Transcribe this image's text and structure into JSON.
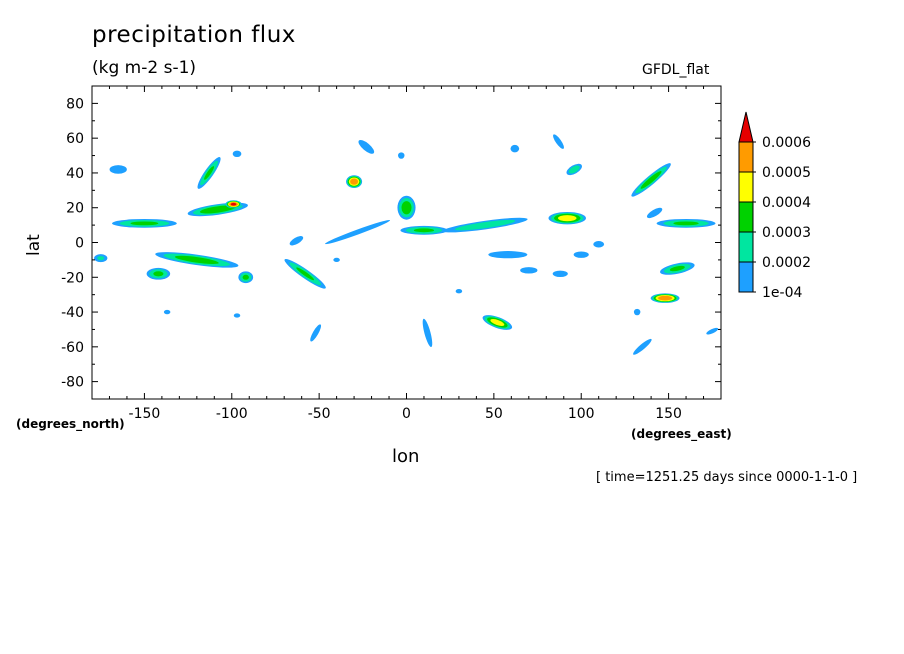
{
  "chart_data": {
    "type": "heatmap",
    "title": "precipitation flux",
    "units": "(kg m-2 s-1)",
    "dataset": "GFDL_flat",
    "xlabel": "lon",
    "xunit": "(degrees_east)",
    "ylabel": "lat",
    "yunit": "(degrees_north)",
    "time_note": "[ time=1251.25 days since 0000-1-1-0 ]",
    "xlim": [
      -180,
      180
    ],
    "ylim": [
      -90,
      90
    ],
    "x_ticks": [
      "-150",
      "-100",
      "-50",
      "0",
      "50",
      "100",
      "150"
    ],
    "x_tick_values": [
      -150,
      -100,
      -50,
      0,
      50,
      100,
      150
    ],
    "y_ticks": [
      "80",
      "60",
      "40",
      "20",
      "0",
      "-20",
      "-40",
      "-60",
      "-80"
    ],
    "y_tick_values": [
      80,
      60,
      40,
      20,
      0,
      -20,
      -40,
      -60,
      -80
    ],
    "colorbar": {
      "labels": [
        "0.0006",
        "0.0005",
        "0.0004",
        "0.0003",
        "0.0002",
        "1e-04"
      ],
      "levels": [
        0.0001,
        0.0002,
        0.0003,
        0.0004,
        0.0005,
        0.0006
      ],
      "colors": [
        "#1ea0ff",
        "#00e6a0",
        "#00d200",
        "#ffff00",
        "#ff9b00",
        "#e60000"
      ],
      "extend": "max"
    },
    "grid": false,
    "features": [
      {
        "lon": -165,
        "lat": 42,
        "rx": 8,
        "ry": 4,
        "angle": 0,
        "peak": 0.00015
      },
      {
        "lon": -175,
        "lat": -9,
        "rx": 5,
        "ry": 3,
        "angle": 0,
        "peak": 0.00022
      },
      {
        "lon": -150,
        "lat": 11,
        "rx": 22,
        "ry": 3,
        "angle": 0,
        "peak": 0.00032
      },
      {
        "lon": -142,
        "lat": -18,
        "rx": 8,
        "ry": 4,
        "angle": 0,
        "peak": 0.00032
      },
      {
        "lon": -113,
        "lat": 40,
        "rx": 13,
        "ry": 3,
        "angle": 55,
        "peak": 0.00032
      },
      {
        "lon": -97,
        "lat": 51,
        "rx": 4,
        "ry": 3,
        "angle": 0,
        "peak": 0.00015
      },
      {
        "lon": -108,
        "lat": 19,
        "rx": 20,
        "ry": 3.5,
        "angle": 8,
        "peak": 0.00038
      },
      {
        "lon": -99,
        "lat": 22,
        "rx": 5,
        "ry": 2.5,
        "angle": 0,
        "peak": 0.00062
      },
      {
        "lon": -120,
        "lat": -10,
        "rx": 28,
        "ry": 3.5,
        "angle": -8,
        "peak": 0.00035
      },
      {
        "lon": -92,
        "lat": -20,
        "rx": 5,
        "ry": 4,
        "angle": 0,
        "peak": 0.00032
      },
      {
        "lon": -137,
        "lat": -40,
        "rx": 3,
        "ry": 2,
        "angle": 0,
        "peak": 0.00015
      },
      {
        "lon": -97,
        "lat": -42,
        "rx": 3,
        "ry": 2,
        "angle": 0,
        "peak": 0.00015
      },
      {
        "lon": -58,
        "lat": -18,
        "rx": 17,
        "ry": 3,
        "angle": -35,
        "peak": 0.00032
      },
      {
        "lon": -52,
        "lat": -52,
        "rx": 9,
        "ry": 2.5,
        "angle": 60,
        "peak": 0.00015
      },
      {
        "lon": -63,
        "lat": 1,
        "rx": 7,
        "ry": 3,
        "angle": 30,
        "peak": 0.00015
      },
      {
        "lon": -30,
        "lat": 35,
        "rx": 5,
        "ry": 4,
        "angle": 0,
        "peak": 0.00058
      },
      {
        "lon": -23,
        "lat": 55,
        "rx": 9,
        "ry": 3.5,
        "angle": -40,
        "peak": 0.00015
      },
      {
        "lon": -3,
        "lat": 50,
        "rx": 3,
        "ry": 3,
        "angle": 0,
        "peak": 0.00015
      },
      {
        "lon": -28,
        "lat": 6,
        "rx": 32,
        "ry": 2.3,
        "angle": 20,
        "peak": 0.00015
      },
      {
        "lon": 0,
        "lat": 20,
        "rx": 6,
        "ry": 8,
        "angle": 0,
        "peak": 0.00036
      },
      {
        "lon": 10,
        "lat": 7,
        "rx": 16,
        "ry": 3,
        "angle": 0,
        "peak": 0.00032
      },
      {
        "lon": 45,
        "lat": 10,
        "rx": 30,
        "ry": 3,
        "angle": 8,
        "peak": 0.00028
      },
      {
        "lon": 58,
        "lat": -7,
        "rx": 16,
        "ry": 3,
        "angle": 0,
        "peak": 0.00018
      },
      {
        "lon": 70,
        "lat": -16,
        "rx": 8,
        "ry": 3,
        "angle": 0,
        "peak": 0.00015
      },
      {
        "lon": 88,
        "lat": -18,
        "rx": 7,
        "ry": 3,
        "angle": 0,
        "peak": 0.00015
      },
      {
        "lon": 12,
        "lat": -52,
        "rx": 12,
        "ry": 2.5,
        "angle": -75,
        "peak": 0.00018
      },
      {
        "lon": 52,
        "lat": -46,
        "rx": 10,
        "ry": 3.5,
        "angle": -20,
        "peak": 0.00045
      },
      {
        "lon": 62,
        "lat": 54,
        "rx": 4,
        "ry": 3.5,
        "angle": 0,
        "peak": 0.00015
      },
      {
        "lon": 87,
        "lat": 58,
        "rx": 8,
        "ry": 2.5,
        "angle": -55,
        "peak": 0.00015
      },
      {
        "lon": 96,
        "lat": 42,
        "rx": 6,
        "ry": 3,
        "angle": 30,
        "peak": 0.00028
      },
      {
        "lon": 92,
        "lat": 14,
        "rx": 12,
        "ry": 4,
        "angle": 0,
        "peak": 0.00046
      },
      {
        "lon": 100,
        "lat": -7,
        "rx": 7,
        "ry": 3,
        "angle": 0,
        "peak": 0.00015
      },
      {
        "lon": 110,
        "lat": -1,
        "rx": 5,
        "ry": 3,
        "angle": 0,
        "peak": 0.00015
      },
      {
        "lon": 140,
        "lat": 36,
        "rx": 17,
        "ry": 3,
        "angle": 40,
        "peak": 0.00035
      },
      {
        "lon": 160,
        "lat": 11,
        "rx": 20,
        "ry": 3,
        "angle": 0,
        "peak": 0.00032
      },
      {
        "lon": 142,
        "lat": 17,
        "rx": 8,
        "ry": 3,
        "angle": 30,
        "peak": 0.00015
      },
      {
        "lon": 155,
        "lat": -15,
        "rx": 12,
        "ry": 3.5,
        "angle": 12,
        "peak": 0.00032
      },
      {
        "lon": 148,
        "lat": -32,
        "rx": 9,
        "ry": 3,
        "angle": 0,
        "peak": 0.00058
      },
      {
        "lon": 175,
        "lat": -51,
        "rx": 6,
        "ry": 2,
        "angle": 25,
        "peak": 0.00015
      },
      {
        "lon": 135,
        "lat": -60,
        "rx": 11,
        "ry": 2.5,
        "angle": 40,
        "peak": 0.00015
      },
      {
        "lon": 132,
        "lat": -40,
        "rx": 3,
        "ry": 3,
        "angle": 0,
        "peak": 0.00015
      },
      {
        "lon": 30,
        "lat": -28,
        "rx": 3,
        "ry": 2,
        "angle": 0,
        "peak": 0.00015
      },
      {
        "lon": -40,
        "lat": -10,
        "rx": 3,
        "ry": 2,
        "angle": 0,
        "peak": 0.00015
      }
    ]
  }
}
